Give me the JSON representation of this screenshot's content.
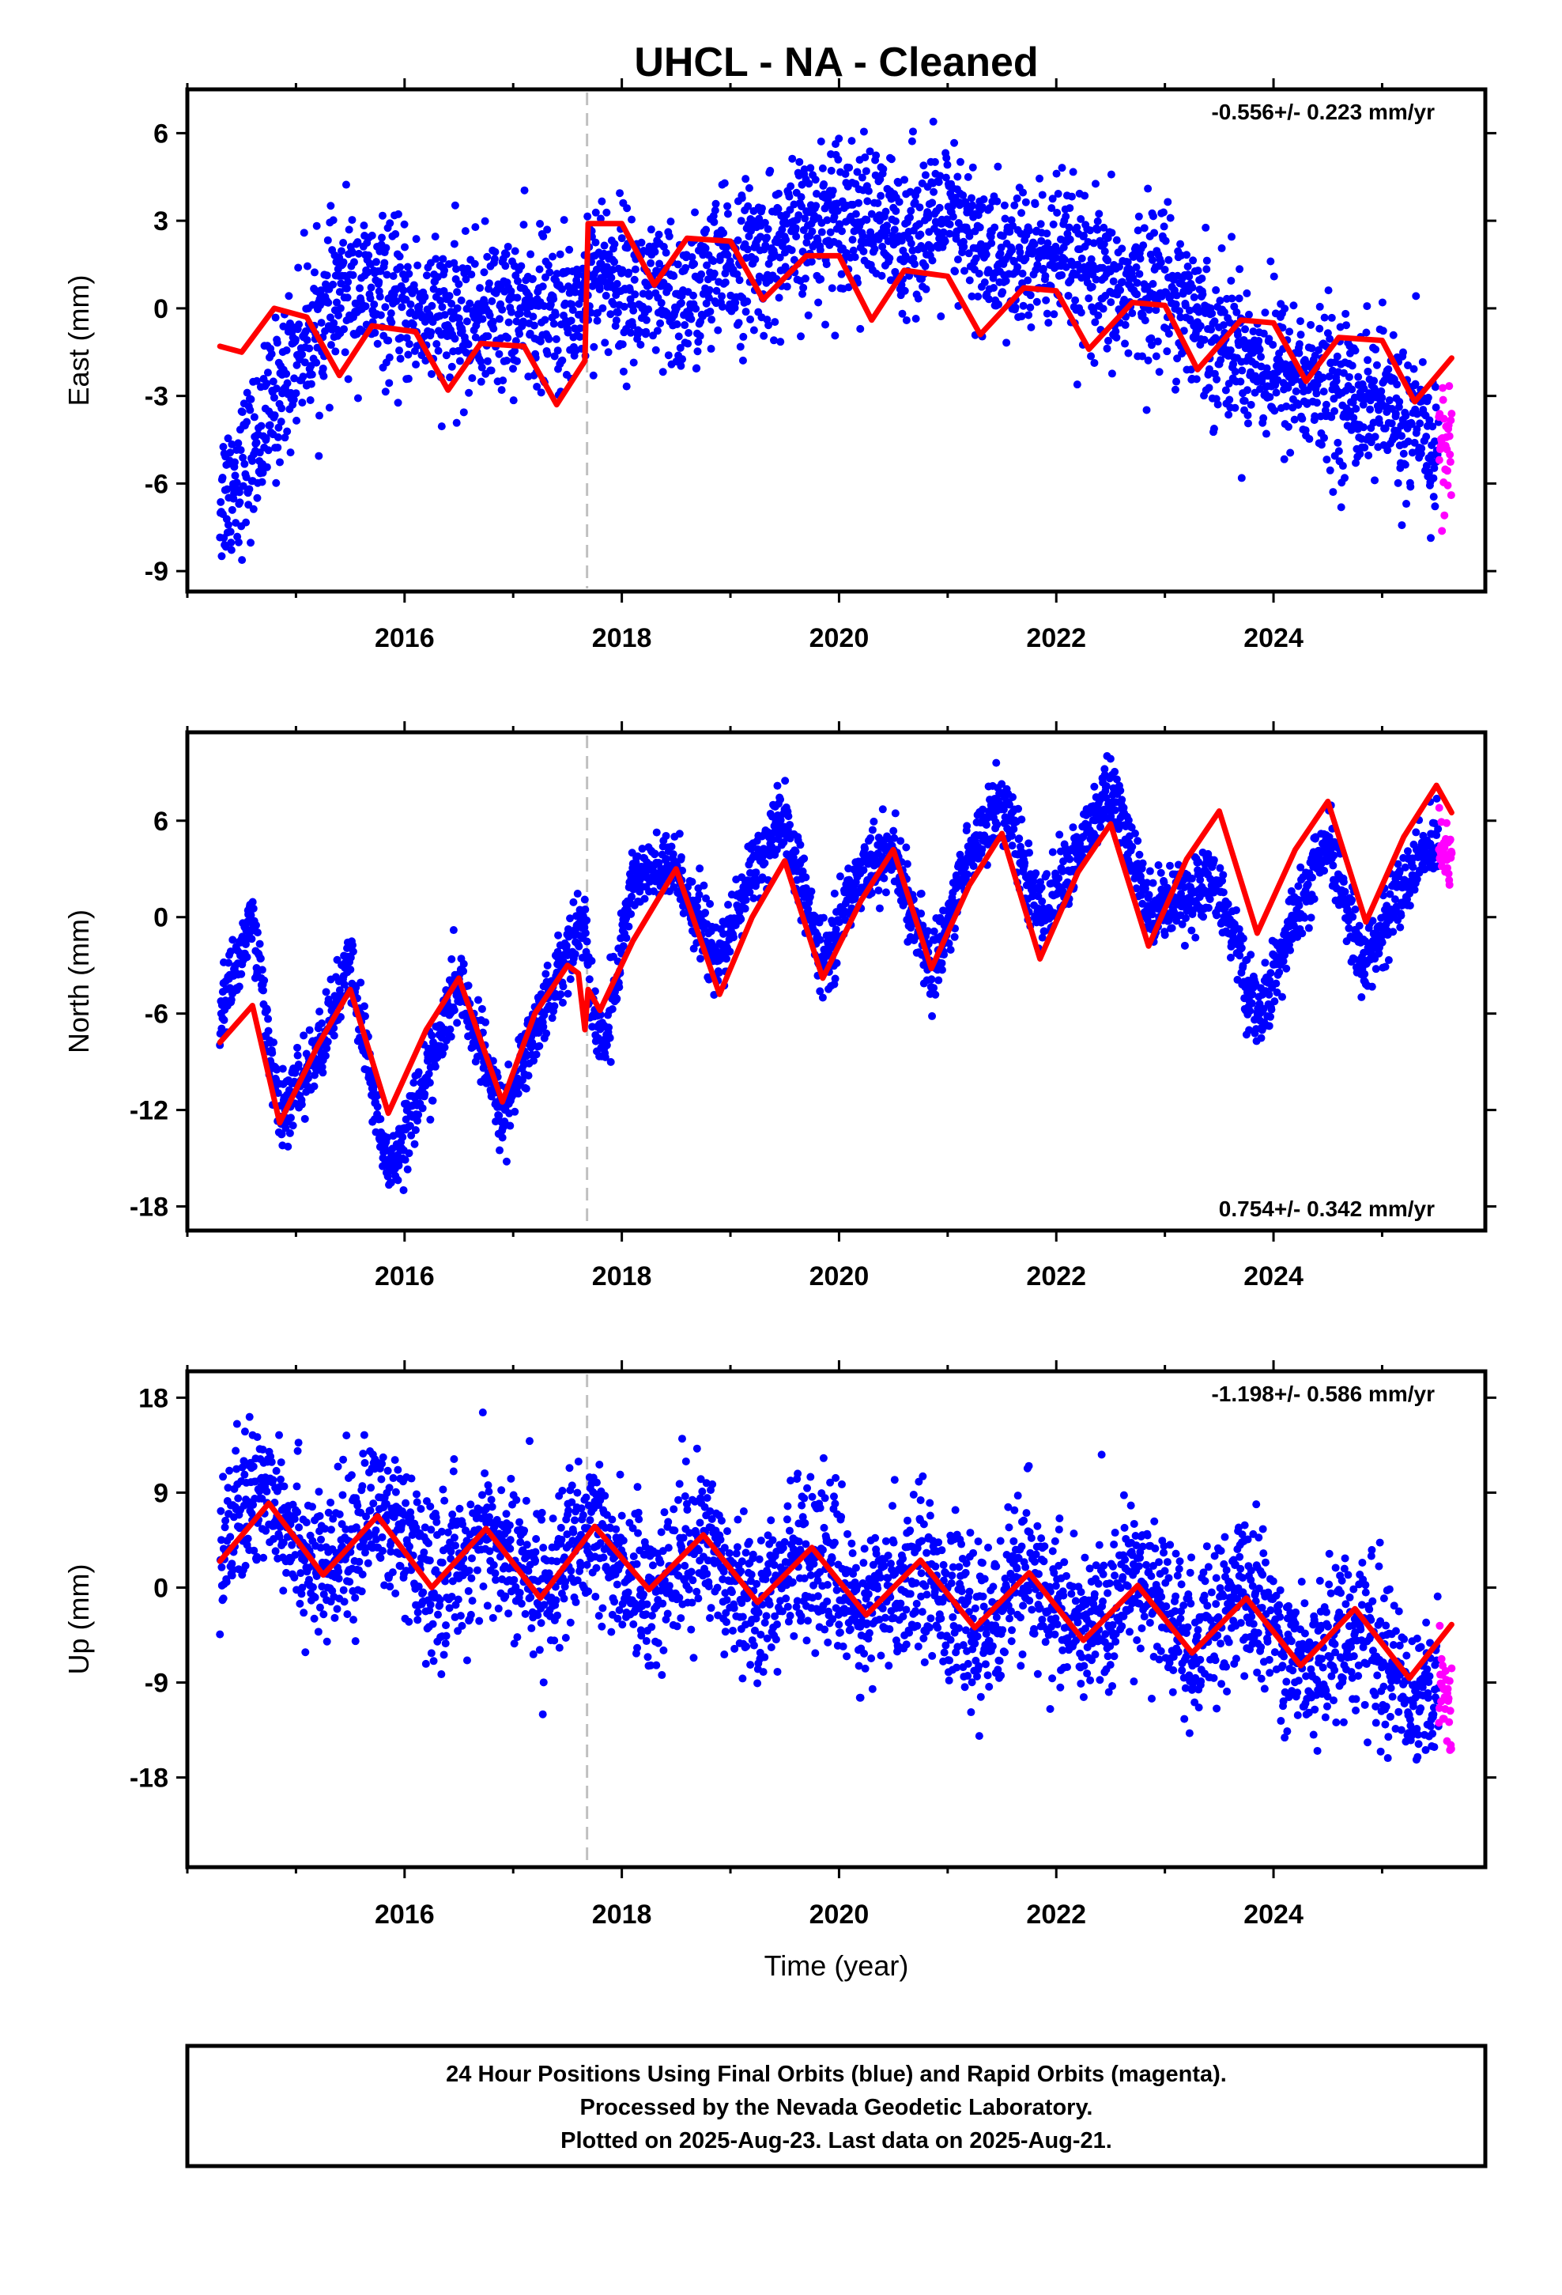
{
  "title": "UHCL  - NA - Cleaned",
  "colors": {
    "final_orbits": "#0000ff",
    "rapid_orbits": "#ff00ff",
    "model": "#ff0000",
    "offset_line": "#c0c0c0",
    "frame": "#000000"
  },
  "chart_data": [
    {
      "type": "scatter",
      "ylabel": "East (mm)",
      "xlabel": "",
      "rate_label": "-0.556+/- 0.223 mm/yr",
      "rate_position": "top-right",
      "xlim": [
        2014.0,
        2025.95
      ],
      "ylim": [
        -9.7,
        7.5
      ],
      "x_ticks": [
        2016,
        2018,
        2020,
        2022,
        2024
      ],
      "x_tick_labels": [
        "2016",
        "2018",
        "2020",
        "2022",
        "2024"
      ],
      "y_ticks": [
        -9,
        -6,
        -3,
        0,
        3,
        6
      ],
      "y_tick_labels": [
        "-9",
        "-6",
        "-3",
        "0",
        "3",
        "6"
      ],
      "offset_epoch": 2017.68,
      "time_range": [
        2014.3,
        2025.64
      ],
      "rapid_range": [
        2025.52,
        2025.64
      ],
      "model_series": {
        "name": "Model",
        "x": [
          2014.3,
          2014.5,
          2014.8,
          2015.1,
          2015.4,
          2015.7,
          2016.1,
          2016.4,
          2016.7,
          2017.1,
          2017.4,
          2017.66,
          2017.69,
          2018.0,
          2018.3,
          2018.6,
          2019.0,
          2019.3,
          2019.7,
          2020.0,
          2020.3,
          2020.6,
          2021.0,
          2021.3,
          2021.7,
          2022.0,
          2022.3,
          2022.7,
          2023.0,
          2023.3,
          2023.7,
          2024.0,
          2024.3,
          2024.6,
          2025.0,
          2025.3,
          2025.64
        ],
        "y": [
          -1.3,
          -1.5,
          0.0,
          -0.3,
          -2.3,
          -0.6,
          -0.8,
          -2.8,
          -1.2,
          -1.3,
          -3.3,
          -1.8,
          2.9,
          2.9,
          0.8,
          2.4,
          2.3,
          0.3,
          1.8,
          1.8,
          -0.4,
          1.3,
          1.1,
          -0.9,
          0.7,
          0.6,
          -1.4,
          0.2,
          0.1,
          -2.1,
          -0.4,
          -0.5,
          -2.5,
          -1.0,
          -1.1,
          -3.2,
          -1.7
        ]
      },
      "scatter_trend": {
        "x": [
          2014.3,
          2014.6,
          2015.0,
          2015.5,
          2016.0,
          2016.5,
          2017.0,
          2017.5,
          2017.66,
          2017.7,
          2018.0,
          2018.5,
          2019.0,
          2019.5,
          2020.0,
          2020.5,
          2021.0,
          2021.5,
          2022.0,
          2022.5,
          2023.0,
          2023.5,
          2024.0,
          2024.5,
          2025.0,
          2025.4,
          2025.64
        ],
        "y": [
          -6.5,
          -5.0,
          -1.5,
          0.8,
          0.0,
          -0.5,
          0.0,
          -0.3,
          0.5,
          1.5,
          0.8,
          0.0,
          1.5,
          2.0,
          3.5,
          2.5,
          3.0,
          1.5,
          1.8,
          0.5,
          1.0,
          -1.0,
          -2.0,
          -2.8,
          -3.2,
          -4.5,
          -5.0
        ]
      },
      "scatter_noise_sd": 1.3
    },
    {
      "type": "scatter",
      "ylabel": "North (mm)",
      "xlabel": "",
      "rate_label": "0.754+/- 0.342 mm/yr",
      "rate_position": "bottom-right",
      "xlim": [
        2014.0,
        2025.95
      ],
      "ylim": [
        -19.5,
        11.5
      ],
      "x_ticks": [
        2016,
        2018,
        2020,
        2022,
        2024
      ],
      "x_tick_labels": [
        "2016",
        "2018",
        "2020",
        "2022",
        "2024"
      ],
      "y_ticks": [
        -18,
        -12,
        -6,
        0,
        6
      ],
      "y_tick_labels": [
        "-18",
        "-12",
        "-6",
        "0",
        "6"
      ],
      "offset_epoch": 2017.68,
      "time_range": [
        2014.3,
        2025.64
      ],
      "rapid_range": [
        2025.52,
        2025.64
      ],
      "model_series": {
        "name": "Model",
        "x": [
          2014.3,
          2014.6,
          2014.85,
          2015.2,
          2015.5,
          2015.85,
          2016.2,
          2016.5,
          2016.9,
          2017.2,
          2017.5,
          2017.6,
          2017.66,
          2017.69,
          2017.8,
          2018.1,
          2018.5,
          2018.9,
          2019.2,
          2019.5,
          2019.85,
          2020.2,
          2020.5,
          2020.85,
          2021.2,
          2021.5,
          2021.85,
          2022.2,
          2022.5,
          2022.85,
          2023.2,
          2023.5,
          2023.85,
          2024.2,
          2024.5,
          2024.85,
          2025.2,
          2025.5,
          2025.64
        ],
        "y": [
          -7.8,
          -5.5,
          -12.8,
          -8.0,
          -4.5,
          -12.2,
          -7.0,
          -3.8,
          -11.5,
          -6.0,
          -3.0,
          -3.5,
          -7.0,
          -4.5,
          -5.8,
          -1.5,
          3.0,
          -4.8,
          0.0,
          3.5,
          -3.8,
          1.0,
          4.2,
          -3.2,
          2.0,
          5.2,
          -2.6,
          2.8,
          5.8,
          -1.8,
          3.6,
          6.6,
          -1.0,
          4.2,
          7.2,
          -0.3,
          5.0,
          8.2,
          6.5
        ]
      },
      "scatter_trend": {
        "x": [
          2014.3,
          2014.6,
          2014.85,
          2015.2,
          2015.5,
          2015.85,
          2016.2,
          2016.5,
          2016.9,
          2017.2,
          2017.5,
          2017.66,
          2017.7,
          2017.85,
          2018.1,
          2018.5,
          2018.9,
          2019.2,
          2019.5,
          2019.85,
          2020.2,
          2020.5,
          2020.85,
          2021.2,
          2021.5,
          2021.85,
          2022.2,
          2022.5,
          2022.85,
          2023.2,
          2023.5,
          2023.85,
          2024.2,
          2024.5,
          2024.85,
          2025.2,
          2025.5,
          2025.64
        ],
        "y": [
          -6.0,
          0.0,
          -12.5,
          -8.5,
          -3.0,
          -16.0,
          -10.0,
          -4.0,
          -12.5,
          -7.0,
          -2.0,
          0.0,
          -5.0,
          -8.0,
          2.5,
          3.0,
          -3.0,
          3.0,
          6.0,
          -3.0,
          3.0,
          4.0,
          -3.5,
          4.0,
          7.5,
          0.0,
          4.0,
          8.0,
          0.5,
          1.5,
          2.0,
          -6.5,
          0.0,
          4.5,
          -3.0,
          2.0,
          5.0,
          4.0
        ]
      },
      "scatter_noise_sd": 1.1
    },
    {
      "type": "scatter",
      "ylabel": "Up (mm)",
      "xlabel": "Time (year)",
      "rate_label": "-1.198+/- 0.586 mm/yr",
      "rate_position": "top-right",
      "xlim": [
        2014.0,
        2025.95
      ],
      "ylim": [
        -26.5,
        20.5
      ],
      "x_ticks": [
        2016,
        2018,
        2020,
        2022,
        2024
      ],
      "x_tick_labels": [
        "2016",
        "2018",
        "2020",
        "2022",
        "2024"
      ],
      "y_ticks": [
        -18,
        -9,
        0,
        9,
        18
      ],
      "y_tick_labels": [
        "-18",
        "-9",
        "0",
        "9",
        "18"
      ],
      "offset_epoch": 2017.68,
      "time_range": [
        2014.3,
        2025.64
      ],
      "rapid_range": [
        2025.52,
        2025.64
      ],
      "model_series": {
        "name": "Model",
        "x": [
          2014.3,
          2014.75,
          2015.25,
          2015.75,
          2016.25,
          2016.75,
          2017.25,
          2017.75,
          2018.25,
          2018.75,
          2019.25,
          2019.75,
          2020.25,
          2020.75,
          2021.25,
          2021.75,
          2022.25,
          2022.75,
          2023.25,
          2023.75,
          2024.25,
          2024.75,
          2025.25,
          2025.64
        ],
        "y": [
          2.5,
          8.0,
          1.2,
          6.8,
          0.0,
          5.6,
          -1.0,
          5.8,
          -0.2,
          5.0,
          -1.4,
          3.8,
          -2.6,
          2.6,
          -3.8,
          1.4,
          -5.0,
          0.2,
          -6.2,
          -1.0,
          -7.4,
          -2.0,
          -8.6,
          -3.5
        ]
      },
      "scatter_trend": {
        "x": [
          2014.3,
          2014.75,
          2015.25,
          2015.75,
          2016.25,
          2016.75,
          2017.25,
          2017.75,
          2018.25,
          2018.75,
          2019.25,
          2019.75,
          2020.25,
          2020.75,
          2021.25,
          2021.75,
          2022.25,
          2022.75,
          2023.25,
          2023.75,
          2024.25,
          2024.75,
          2025.25,
          2025.64
        ],
        "y": [
          4.0,
          10.0,
          0.5,
          8.0,
          0.0,
          5.0,
          0.0,
          5.0,
          -1.0,
          5.0,
          -2.0,
          4.0,
          -3.0,
          2.5,
          -4.5,
          1.5,
          -5.0,
          1.5,
          -6.0,
          0.0,
          -7.5,
          -3.5,
          -9.5,
          -11.0
        ]
      },
      "scatter_noise_sd": 3.6
    }
  ],
  "footer": {
    "line1": "24 Hour Positions Using Final Orbits (blue) and Rapid Orbits (magenta).",
    "line2": "Processed by the Nevada Geodetic Laboratory.",
    "line3": "Plotted on 2025-Aug-23. Last data on 2025-Aug-21."
  }
}
